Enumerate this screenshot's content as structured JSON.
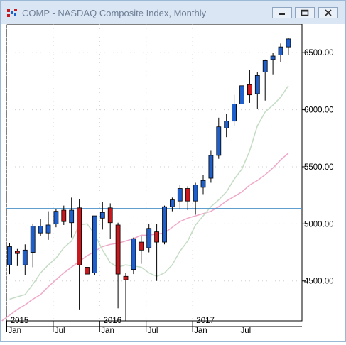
{
  "window": {
    "title": "COMP - NASDAQ Composite Index, Monthly",
    "controls": [
      "minimize",
      "restore",
      "close"
    ]
  },
  "colors": {
    "up_candle": "#1f5fcc",
    "down_candle": "#c8191e",
    "ma_short": "#c4dcc4",
    "ma_long": "#f0a8c8",
    "reference_line": "#4a90c8",
    "grid": "#cfcfcf"
  },
  "chart_data": {
    "type": "candlestick",
    "title": "COMP - NASDAQ Composite Index, Monthly",
    "y_ticks": [
      "6500.00",
      "6000.00",
      "5500.00",
      "5000.00",
      "4500.00"
    ],
    "y_tick_values": [
      6500,
      6000,
      5500,
      5000,
      4500
    ],
    "ylim": [
      4150,
      6750
    ],
    "x_year_labels": [
      "2015",
      "2016",
      "2017"
    ],
    "x_month_labels": [
      "Jan",
      "Jul",
      "Jan",
      "Jul",
      "Jan",
      "Jul"
    ],
    "x_month_index": [
      0,
      6,
      12,
      18,
      24,
      30
    ],
    "x_year_index": [
      0,
      12,
      24
    ],
    "reference_level": 5135,
    "grid": true,
    "candles": [
      {
        "o": 4640,
        "h": 4830,
        "l": 4560,
        "c": 4800
      },
      {
        "o": 4760,
        "h": 4780,
        "l": 4630,
        "c": 4740
      },
      {
        "o": 4640,
        "h": 4820,
        "l": 4550,
        "c": 4770
      },
      {
        "o": 4750,
        "h": 5000,
        "l": 4620,
        "c": 4980
      },
      {
        "o": 4920,
        "h": 5040,
        "l": 4890,
        "c": 4980
      },
      {
        "o": 4920,
        "h": 5110,
        "l": 4860,
        "c": 4990
      },
      {
        "o": 5000,
        "h": 5130,
        "l": 4970,
        "c": 5110
      },
      {
        "o": 5120,
        "h": 5160,
        "l": 4990,
        "c": 5020
      },
      {
        "o": 5010,
        "h": 5230,
        "l": 4880,
        "c": 5120
      },
      {
        "o": 5140,
        "h": 5220,
        "l": 4250,
        "c": 4640
      },
      {
        "o": 4620,
        "h": 4860,
        "l": 4410,
        "c": 4560
      },
      {
        "o": 4570,
        "h": 5070,
        "l": 4550,
        "c": 5070
      },
      {
        "o": 5050,
        "h": 5190,
        "l": 4950,
        "c": 5100
      },
      {
        "o": 5140,
        "h": 5180,
        "l": 4870,
        "c": 5010
      },
      {
        "o": 4990,
        "h": 5010,
        "l": 4260,
        "c": 4560
      },
      {
        "o": 4540,
        "h": 4570,
        "l": 4150,
        "c": 4510
      },
      {
        "o": 4600,
        "h": 4880,
        "l": 4560,
        "c": 4870
      },
      {
        "o": 4840,
        "h": 4890,
        "l": 4650,
        "c": 4770
      },
      {
        "o": 4790,
        "h": 5000,
        "l": 4750,
        "c": 4960
      },
      {
        "o": 4930,
        "h": 5000,
        "l": 4500,
        "c": 4840
      },
      {
        "o": 4840,
        "h": 5160,
        "l": 4820,
        "c": 5150
      },
      {
        "o": 5150,
        "h": 5230,
        "l": 5110,
        "c": 5210
      },
      {
        "o": 5200,
        "h": 5340,
        "l": 5130,
        "c": 5310
      },
      {
        "o": 5310,
        "h": 5330,
        "l": 5120,
        "c": 5200
      },
      {
        "o": 5200,
        "h": 5360,
        "l": 5080,
        "c": 5340
      },
      {
        "o": 5320,
        "h": 5430,
        "l": 5260,
        "c": 5380
      },
      {
        "o": 5400,
        "h": 5640,
        "l": 5360,
        "c": 5600
      },
      {
        "o": 5600,
        "h": 5930,
        "l": 5570,
        "c": 5850
      },
      {
        "o": 5840,
        "h": 5960,
        "l": 5760,
        "c": 5900
      },
      {
        "o": 5900,
        "h": 6130,
        "l": 5860,
        "c": 6050
      },
      {
        "o": 6050,
        "h": 6230,
        "l": 5970,
        "c": 6210
      },
      {
        "o": 6220,
        "h": 6350,
        "l": 6060,
        "c": 6130
      },
      {
        "o": 6140,
        "h": 6330,
        "l": 6010,
        "c": 6300
      },
      {
        "o": 6330,
        "h": 6440,
        "l": 6080,
        "c": 6430
      },
      {
        "o": 6440,
        "h": 6500,
        "l": 6310,
        "c": 6470
      },
      {
        "o": 6480,
        "h": 6580,
        "l": 6420,
        "c": 6550
      },
      {
        "o": 6550,
        "h": 6630,
        "l": 6480,
        "c": 6620
      }
    ],
    "ma_short_values": [
      4340,
      4360,
      4380,
      4470,
      4570,
      4640,
      4700,
      4790,
      4850,
      4990,
      5000,
      4910,
      4770,
      4660,
      4620,
      4640,
      4630,
      4620,
      4570,
      4540,
      4570,
      4640,
      4760,
      4850,
      4990,
      5070,
      5150,
      5210,
      5280,
      5390,
      5480,
      5640,
      5860,
      5980,
      6040,
      6110,
      6210
    ],
    "ma_short_start": 0,
    "ma_long_values": [
      4150,
      4200,
      4250,
      4290,
      4340,
      4380,
      4450,
      4510,
      4570,
      4620,
      4670,
      4720,
      4760,
      4800,
      4820,
      4830,
      4850,
      4870,
      4900,
      4900,
      4910,
      4920,
      4970,
      5020,
      5050,
      5070,
      5090,
      5110,
      5150,
      5200,
      5240,
      5280,
      5340,
      5380,
      5430,
      5490,
      5560,
      5620
    ],
    "ma_long_start": -1
  }
}
